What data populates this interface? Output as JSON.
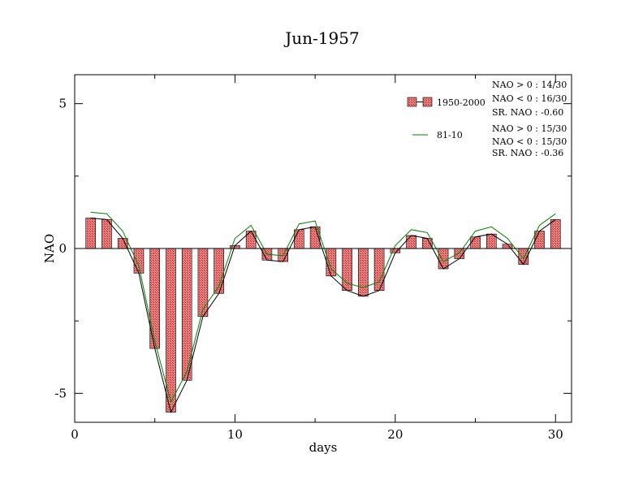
{
  "chart_data": {
    "type": "bar",
    "title": "Jun-1957",
    "xlabel": "days",
    "ylabel": "NAO",
    "xlim": [
      0,
      31
    ],
    "ylim": [
      -6,
      6
    ],
    "xticks": [
      0,
      10,
      20,
      30
    ],
    "yticks": [
      -5,
      0,
      5
    ],
    "grid": false,
    "legend_position": "top-right",
    "x": [
      1,
      2,
      3,
      4,
      5,
      6,
      7,
      8,
      9,
      10,
      11,
      12,
      13,
      14,
      15,
      16,
      17,
      18,
      19,
      20,
      21,
      22,
      23,
      24,
      25,
      26,
      27,
      28,
      29,
      30
    ],
    "series": [
      {
        "name": "1950-2000",
        "kind": "bar",
        "values": [
          1.05,
          1.0,
          0.35,
          -0.85,
          -3.45,
          -5.65,
          -4.55,
          -2.35,
          -1.55,
          0.1,
          0.6,
          -0.4,
          -0.45,
          0.65,
          0.75,
          -0.95,
          -1.45,
          -1.65,
          -1.45,
          -0.15,
          0.45,
          0.35,
          -0.7,
          -0.35,
          0.4,
          0.5,
          0.15,
          -0.55,
          0.6,
          1.0
        ],
        "line_values": [
          1.05,
          1.0,
          0.35,
          -0.85,
          -3.45,
          -5.65,
          -4.55,
          -2.35,
          -1.55,
          0.1,
          0.6,
          -0.4,
          -0.45,
          0.65,
          0.75,
          -0.95,
          -1.45,
          -1.65,
          -1.45,
          -0.15,
          0.45,
          0.35,
          -0.7,
          -0.35,
          0.4,
          0.5,
          0.15,
          -0.55,
          0.6,
          1.0
        ],
        "bar_color": "#e06060",
        "line_color": "#000000"
      },
      {
        "name": "81-10",
        "kind": "line",
        "values": [
          1.25,
          1.2,
          0.6,
          -0.6,
          -3.2,
          -5.3,
          -4.25,
          -2.1,
          -1.3,
          0.35,
          0.8,
          -0.2,
          -0.25,
          0.85,
          0.95,
          -0.7,
          -1.2,
          -1.35,
          -1.15,
          0.1,
          0.65,
          0.55,
          -0.45,
          -0.15,
          0.6,
          0.75,
          0.35,
          -0.35,
          0.8,
          1.2
        ],
        "line_color": "#008000"
      }
    ],
    "legend": {
      "entries": [
        "1950-2000",
        "81-10"
      ],
      "stats_1": [
        "NAO > 0 : 14/30",
        "NAO < 0 : 16/30",
        "SR. NAO : -0.60"
      ],
      "stats_2": [
        "NAO > 0 : 15/30",
        "NAO < 0 : 15/30",
        "SR. NAO : -0.36"
      ]
    }
  }
}
